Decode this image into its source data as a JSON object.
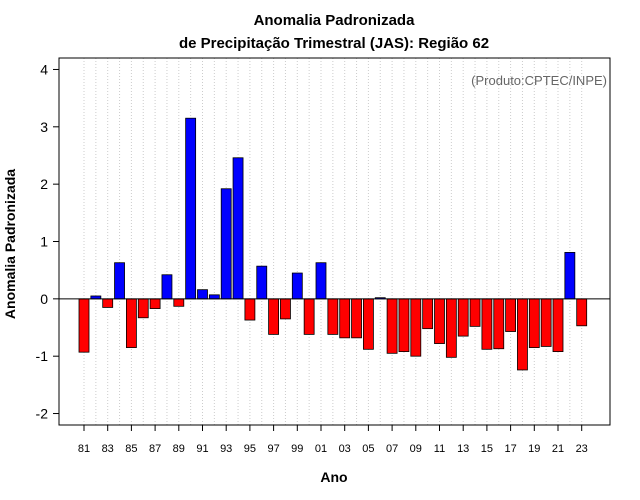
{
  "chart_data": {
    "type": "bar",
    "title_line1": "Anomalia Padronizada",
    "title_line2": "de Precipitação Trimestral (JAS): Região 62",
    "xlabel": "Ano",
    "ylabel": "Anomalia Padronizada",
    "annotation": "(Produto:CPTEC/INPE)",
    "ylim": [
      -2.2,
      4.2
    ],
    "yticks": [
      -2,
      -1,
      0,
      1,
      2,
      3,
      4
    ],
    "grid": true,
    "positive_color": "#0000ff",
    "negative_color": "#ff0000",
    "categories": [
      "81",
      "82",
      "83",
      "84",
      "85",
      "86",
      "87",
      "88",
      "89",
      "90",
      "91",
      "92",
      "93",
      "94",
      "95",
      "96",
      "97",
      "98",
      "99",
      "00",
      "01",
      "02",
      "03",
      "04",
      "05",
      "06",
      "07",
      "08",
      "09",
      "10",
      "11",
      "12",
      "13",
      "14",
      "15",
      "16",
      "17",
      "18",
      "19",
      "20",
      "21",
      "22",
      "23"
    ],
    "xtick_labels": [
      "81",
      "83",
      "85",
      "87",
      "89",
      "91",
      "93",
      "95",
      "97",
      "99",
      "01",
      "03",
      "05",
      "07",
      "09",
      "11",
      "13",
      "15",
      "17",
      "19",
      "21",
      "23"
    ],
    "values": [
      -0.93,
      0.05,
      -0.15,
      0.63,
      -0.85,
      -0.33,
      -0.17,
      0.42,
      -0.13,
      3.15,
      0.16,
      0.07,
      1.92,
      2.46,
      -0.37,
      0.57,
      -0.62,
      -0.35,
      0.45,
      -0.62,
      0.63,
      -0.62,
      -0.68,
      -0.68,
      -0.88,
      0.02,
      -0.95,
      -0.92,
      -1.0,
      -0.52,
      -0.78,
      -1.02,
      -0.65,
      -0.48,
      -0.88,
      -0.87,
      -0.57,
      -1.24,
      -0.85,
      -0.83,
      -0.92,
      0.81,
      -0.47
    ]
  }
}
